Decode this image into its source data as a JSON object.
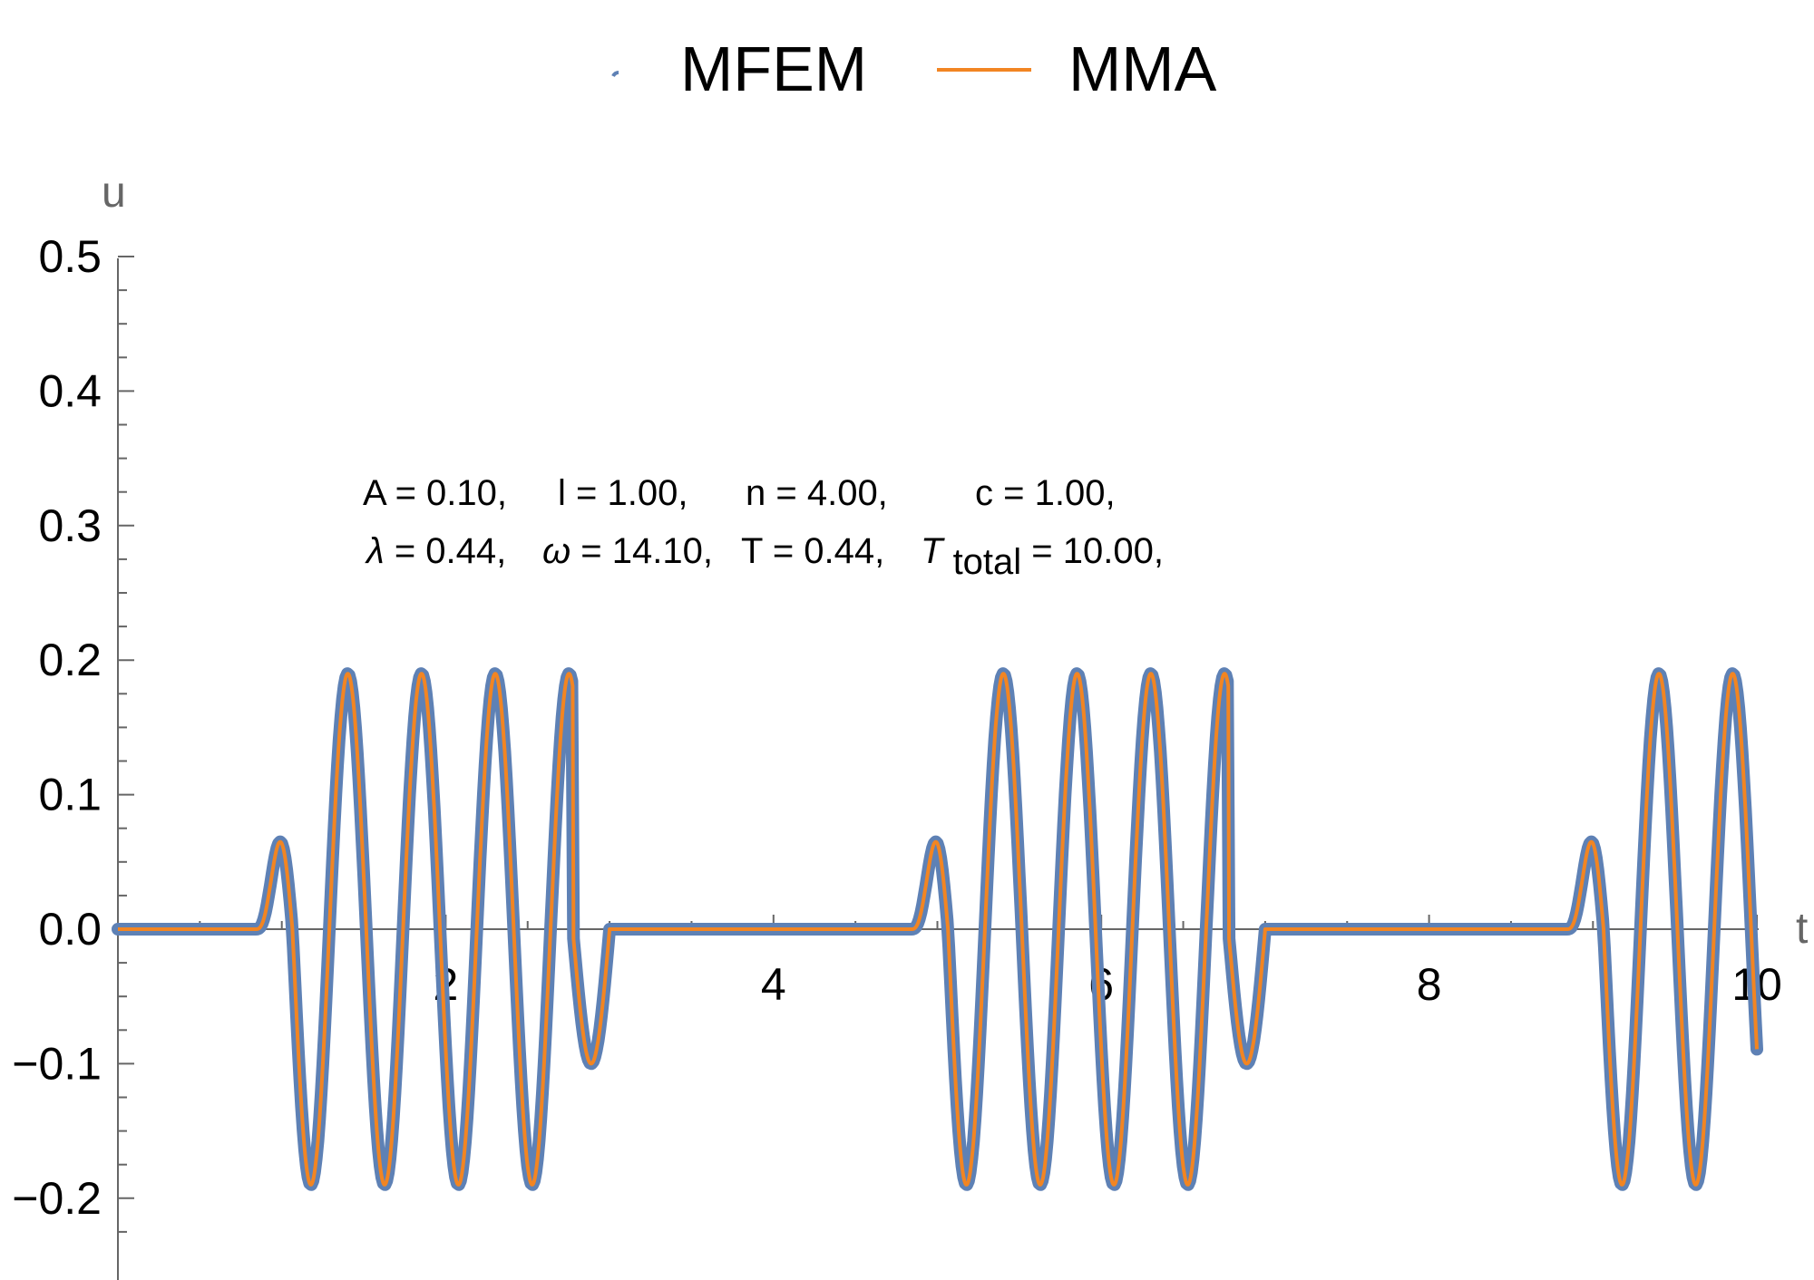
{
  "chart_data": {
    "type": "line",
    "title": "",
    "xlabel": "t",
    "ylabel": "u",
    "xlim": [
      0,
      10
    ],
    "ylim": [
      -0.25,
      0.5
    ],
    "x_ticks": [
      2,
      4,
      6,
      8,
      10
    ],
    "x_tick_labels": [
      "2",
      "4",
      "6",
      "8",
      "10"
    ],
    "y_ticks": [
      0.5,
      0.4,
      0.3,
      0.2,
      0.1,
      0.0,
      -0.1,
      -0.2
    ],
    "y_tick_labels": [
      "0.5",
      "0.4",
      "0.3",
      "0.2",
      "0.1",
      "0.0",
      "−0.1",
      "−0.2"
    ],
    "grid": false,
    "legend_position": "top-center",
    "series": [
      {
        "name": "MFEM",
        "style": "markers",
        "color": "#5e81b5",
        "description_values": "dense markers overlapping MMA curve",
        "bursts": [
          {
            "start": 0.0,
            "end": 3.0
          },
          {
            "start": 4.0,
            "end": 7.0
          },
          {
            "start": 8.0,
            "end": 10.0
          }
        ]
      },
      {
        "name": "MMA",
        "style": "line",
        "color": "#f28522"
      }
    ],
    "signal": {
      "A": 0.1,
      "l": 1.0,
      "n": 4.0,
      "c": 1.0,
      "lambda": 0.44,
      "omega": 14.1,
      "T": 0.44,
      "T_total": 10.0,
      "flat_intervals": [
        [
          0,
          0.84
        ],
        [
          3.0,
          4.84
        ],
        [
          7.0,
          8.84
        ]
      ],
      "burst_start_times": [
        0.84,
        4.84,
        8.84
      ],
      "peak_value": 0.19,
      "trough_value": -0.19,
      "first_peak": 0.1,
      "last_trough": -0.1
    },
    "annotations": {
      "line1": [
        "A = 0.10,",
        "l = 1.00,",
        "n = 4.00,",
        "c = 1.00,"
      ],
      "line2_parts": [
        "λ",
        " = 0.44,",
        "ω",
        " = 14.10,",
        "T = 0.44,",
        "T",
        "total",
        " = 10.00,"
      ]
    }
  },
  "legend": {
    "items": [
      {
        "label": "MFEM"
      },
      {
        "label": "MMA"
      }
    ]
  }
}
